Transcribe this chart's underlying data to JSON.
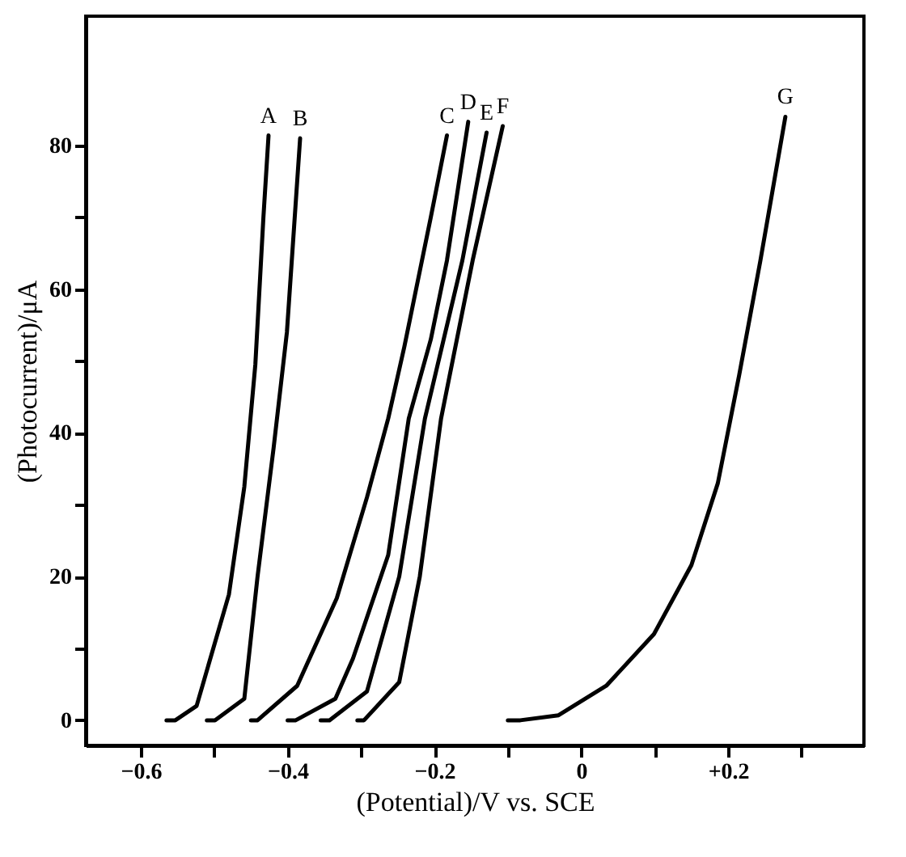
{
  "chart_data": {
    "type": "line",
    "xlabel": "(Potential)/V vs. SCE",
    "ylabel": "(Photocurrent)/μA",
    "xlim": [
      -0.675,
      0.385
    ],
    "ylim": [
      -3.5,
      98
    ],
    "xticks": [
      {
        "value": -0.6,
        "label": "−0.6"
      },
      {
        "value": -0.5,
        "label": null
      },
      {
        "value": -0.4,
        "label": "−0.4"
      },
      {
        "value": -0.3,
        "label": null
      },
      {
        "value": -0.2,
        "label": "−0.2"
      },
      {
        "value": -0.1,
        "label": null
      },
      0,
      {
        "value": 0.1,
        "label": null
      },
      {
        "value": 0.2,
        "label": "+0.2"
      },
      {
        "value": 0.3,
        "label": null
      }
    ],
    "yticks": [
      0,
      {
        "value": 10,
        "label": null
      },
      20,
      {
        "value": 30,
        "label": null
      },
      40,
      {
        "value": 50,
        "label": null
      },
      60,
      {
        "value": 70,
        "label": null
      },
      80
    ],
    "grid": false,
    "legend": false,
    "marker": "none",
    "line_style": "solid",
    "series": [
      {
        "name": "A",
        "color": "#000000",
        "x": [
          -0.565,
          -0.553,
          -0.524,
          -0.48,
          -0.459,
          -0.444,
          -0.433,
          -0.426
        ],
        "values": [
          0,
          0,
          2,
          17.5,
          32.5,
          49.5,
          70,
          81.4
        ]
      },
      {
        "name": "B",
        "color": "#000000",
        "x": [
          -0.51,
          -0.499,
          -0.459,
          -0.441,
          -0.419,
          -0.401,
          -0.383
        ],
        "values": [
          0,
          0,
          3,
          20,
          38,
          54,
          81
        ]
      },
      {
        "name": "C",
        "color": "#000000",
        "x": [
          -0.45,
          -0.441,
          -0.387,
          -0.333,
          -0.292,
          -0.263,
          -0.241,
          -0.227,
          -0.205,
          -0.183
        ],
        "values": [
          0,
          0,
          4.8,
          17,
          31,
          42,
          52,
          59,
          70,
          81.4
        ]
      },
      {
        "name": "D",
        "color": "#000000",
        "x": [
          -0.4,
          -0.389,
          -0.335,
          -0.311,
          -0.263,
          -0.235,
          -0.205,
          -0.183,
          -0.154
        ],
        "values": [
          0,
          0,
          3,
          8.6,
          23,
          42,
          53,
          64,
          83.3
        ]
      },
      {
        "name": "E",
        "color": "#000000",
        "x": [
          -0.355,
          -0.343,
          -0.292,
          -0.248,
          -0.213,
          -0.162,
          -0.129
        ],
        "values": [
          0,
          0,
          4,
          20,
          42,
          64,
          81.8
        ]
      },
      {
        "name": "F",
        "color": "#000000",
        "x": [
          -0.305,
          -0.296,
          -0.248,
          -0.22,
          -0.191,
          -0.148,
          -0.107
        ],
        "values": [
          0,
          0,
          5.3,
          20,
          42,
          64,
          82.7
        ]
      },
      {
        "name": "G",
        "color": "#000000",
        "x": [
          -0.1,
          -0.083,
          -0.031,
          0.034,
          0.099,
          0.15,
          0.186,
          0.215,
          0.244,
          0.278
        ],
        "values": [
          0,
          0,
          0.7,
          4.8,
          12,
          21.6,
          33,
          48,
          64,
          84
        ]
      }
    ]
  }
}
